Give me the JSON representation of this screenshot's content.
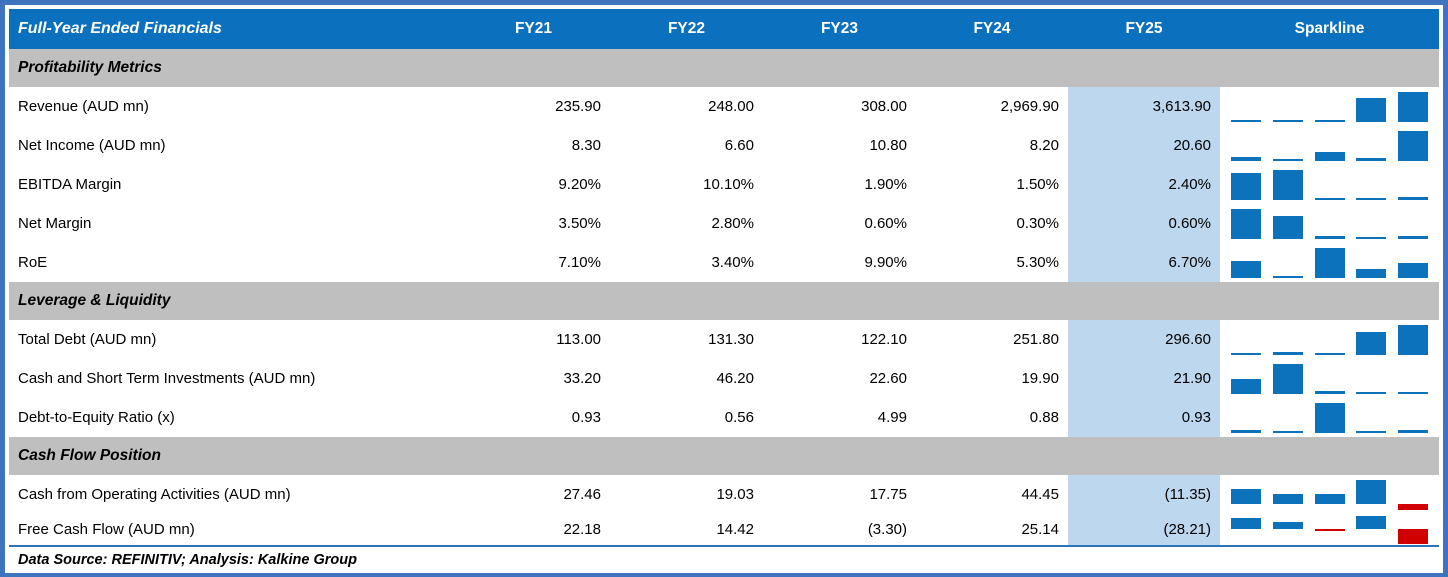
{
  "header": {
    "title": "Full-Year Ended Financials",
    "columns": [
      "FY21",
      "FY22",
      "FY23",
      "FY24",
      "FY25"
    ],
    "sparkline_label": "Sparkline"
  },
  "colors": {
    "header_bg": "#0b70bd",
    "header_text": "#ffffff",
    "section_bg": "#bfbfbf",
    "fy25_highlight_bg": "#bdd7ee",
    "sparkline_positive": "#0b72bb",
    "sparkline_negative": "#d10000",
    "outer_border": "#3e74bd",
    "bottom_rule": "#2e75b6"
  },
  "chart_data": {
    "type": "table",
    "title": "Full-Year Ended Financials",
    "columns": [
      "FY21",
      "FY22",
      "FY23",
      "FY24",
      "FY25",
      "Sparkline"
    ],
    "sparkline_type": "bar",
    "sparkline_notes": "per-row mini column chart of FY21-FY25; bars scaled between row min and max, axis at zero when negatives exist; negative bars red",
    "sections": [
      {
        "title": "Profitability Metrics",
        "rows": [
          {
            "label": "Revenue (AUD mn)",
            "display": [
              "235.90",
              "248.00",
              "308.00",
              "2,969.90",
              "3,613.90"
            ],
            "values": [
              235.9,
              248.0,
              308.0,
              2969.9,
              3613.9
            ]
          },
          {
            "label": "Net Income (AUD mn)",
            "display": [
              "8.30",
              "6.60",
              "10.80",
              "8.20",
              "20.60"
            ],
            "values": [
              8.3,
              6.6,
              10.8,
              8.2,
              20.6
            ]
          },
          {
            "label": "EBITDA Margin",
            "display": [
              "9.20%",
              "10.10%",
              "1.90%",
              "1.50%",
              "2.40%"
            ],
            "values": [
              9.2,
              10.1,
              1.9,
              1.5,
              2.4
            ]
          },
          {
            "label": "Net Margin",
            "display": [
              "3.50%",
              "2.80%",
              "0.60%",
              "0.30%",
              "0.60%"
            ],
            "values": [
              3.5,
              2.8,
              0.6,
              0.3,
              0.6
            ]
          },
          {
            "label": "RoE",
            "display": [
              "7.10%",
              "3.40%",
              "9.90%",
              "5.30%",
              "6.70%"
            ],
            "values": [
              7.1,
              3.4,
              9.9,
              5.3,
              6.7
            ]
          }
        ]
      },
      {
        "title": "Leverage & Liquidity",
        "rows": [
          {
            "label": "Total Debt (AUD mn)",
            "display": [
              "113.00",
              "131.30",
              "122.10",
              "251.80",
              "296.60"
            ],
            "values": [
              113.0,
              131.3,
              122.1,
              251.8,
              296.6
            ]
          },
          {
            "label": "Cash and Short Term Investments (AUD mn)",
            "display": [
              "33.20",
              "46.20",
              "22.60",
              "19.90",
              "21.90"
            ],
            "values": [
              33.2,
              46.2,
              22.6,
              19.9,
              21.9
            ]
          },
          {
            "label": "Debt-to-Equity Ratio (x)",
            "display": [
              "0.93",
              "0.56",
              "4.99",
              "0.88",
              "0.93"
            ],
            "values": [
              0.93,
              0.56,
              4.99,
              0.88,
              0.93
            ]
          }
        ]
      },
      {
        "title": "Cash Flow Position",
        "rows": [
          {
            "label": "Cash from Operating Activities (AUD mn)",
            "display": [
              "27.46",
              "19.03",
              "17.75",
              "44.45",
              "(11.35)"
            ],
            "values": [
              27.46,
              19.03,
              17.75,
              44.45,
              -11.35
            ]
          },
          {
            "label": "Free Cash Flow (AUD mn)",
            "display": [
              "22.18",
              "14.42",
              "(3.30)",
              "25.14",
              "(28.21)"
            ],
            "values": [
              22.18,
              14.42,
              -3.3,
              25.14,
              -28.21
            ]
          }
        ]
      }
    ]
  },
  "footer": {
    "text": "Data Source: REFINITIV; Analysis: Kalkine Group"
  }
}
